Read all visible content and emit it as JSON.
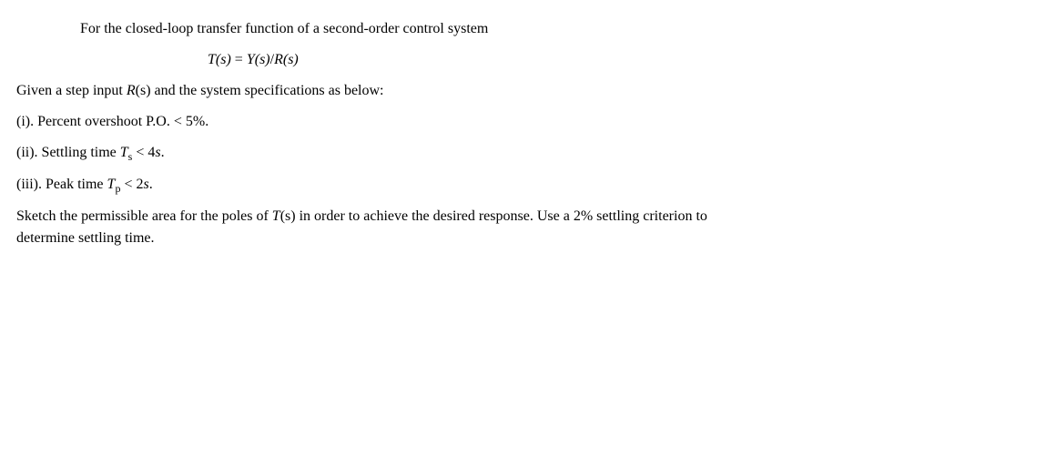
{
  "intro": "For the closed-loop transfer function of a second-order control system",
  "equation_lhs": "T",
  "equation_lhs_arg": "(s)",
  "equation_eq": " = ",
  "equation_rhs1": "Y",
  "equation_rhs1_arg": "(s)",
  "equation_slash": "/",
  "equation_rhs2": "R",
  "equation_rhs2_arg": "(s)",
  "given1": "Given a step input ",
  "given_R": "R",
  "given_R_arg": "(s)",
  "given2": " and the system specifications as below:",
  "spec1": "(i). Percent overshoot P.O. < 5%.",
  "spec2_a": "(ii). Settling time ",
  "spec2_T": "T",
  "spec2_sub": "s",
  "spec2_b": " < 4",
  "spec2_s": "s",
  "spec2_dot": ".",
  "spec3_a": "(iii). Peak time ",
  "spec3_T": "T",
  "spec3_sub": "p",
  "spec3_b": " < 2",
  "spec3_s": "s",
  "spec3_dot": ".",
  "final1": "Sketch the permissible area for the poles of ",
  "final_T": "T",
  "final_T_arg": "(s)",
  "final2": " in order to achieve the desired response. Use a 2% settling criterion to determine settling time."
}
